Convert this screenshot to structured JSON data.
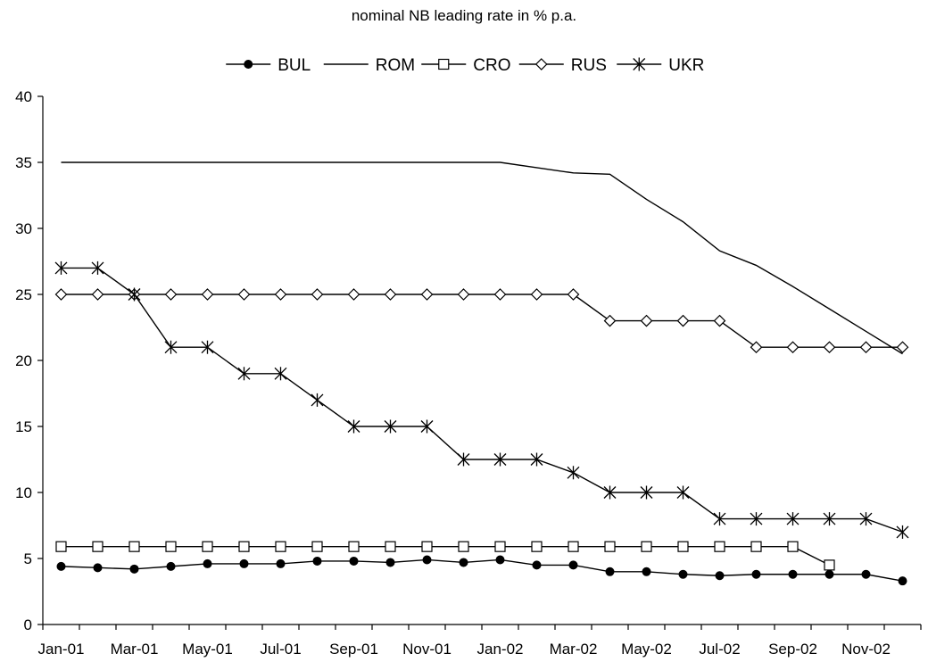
{
  "chart_data": {
    "type": "line",
    "title": "nominal NB leading rate in % p.a.",
    "xlabel": "",
    "ylabel": "",
    "ylim": [
      0,
      40
    ],
    "yticks": [
      0,
      5,
      10,
      15,
      20,
      25,
      30,
      35,
      40
    ],
    "x": [
      "Jan-01",
      "Feb-01",
      "Mar-01",
      "Apr-01",
      "May-01",
      "Jun-01",
      "Jul-01",
      "Aug-01",
      "Sep-01",
      "Oct-01",
      "Nov-01",
      "Dec-01",
      "Jan-02",
      "Feb-02",
      "Mar-02",
      "Apr-02",
      "May-02",
      "Jun-02",
      "Jul-02",
      "Aug-02",
      "Sep-02",
      "Oct-02",
      "Nov-02",
      "Dec-02"
    ],
    "xtick_labels": [
      "Jan-01",
      "Mar-01",
      "May-01",
      "Jul-01",
      "Sep-01",
      "Nov-01",
      "Jan-02",
      "Mar-02",
      "May-02",
      "Jul-02",
      "Sep-02",
      "Nov-02"
    ],
    "grid": false,
    "legend": "top-center",
    "series": [
      {
        "name": "BUL",
        "marker": "filled-circle",
        "color": "#000000",
        "values": [
          4.4,
          4.3,
          4.2,
          4.4,
          4.6,
          4.6,
          4.6,
          4.8,
          4.8,
          4.7,
          4.9,
          4.7,
          4.9,
          4.5,
          4.5,
          4.0,
          4.0,
          3.8,
          3.7,
          3.8,
          3.8,
          3.8,
          3.8,
          3.3
        ]
      },
      {
        "name": "ROM",
        "marker": "none",
        "color": "#000000",
        "values": [
          35,
          35,
          35,
          35,
          35,
          35,
          35,
          35,
          35,
          35,
          35,
          35,
          35,
          34.6,
          34.2,
          34.1,
          32.2,
          30.5,
          28.3,
          27.2,
          25.6,
          23.9,
          22.2,
          20.5
        ]
      },
      {
        "name": "CRO",
        "marker": "open-square",
        "color": "#000000",
        "values": [
          5.9,
          5.9,
          5.9,
          5.9,
          5.9,
          5.9,
          5.9,
          5.9,
          5.9,
          5.9,
          5.9,
          5.9,
          5.9,
          5.9,
          5.9,
          5.9,
          5.9,
          5.9,
          5.9,
          5.9,
          5.9,
          4.5,
          null,
          null
        ]
      },
      {
        "name": "RUS",
        "marker": "open-diamond",
        "color": "#000000",
        "values": [
          25,
          25,
          25,
          25,
          25,
          25,
          25,
          25,
          25,
          25,
          25,
          25,
          25,
          25,
          25,
          23,
          23,
          23,
          23,
          21,
          21,
          21,
          21,
          21
        ]
      },
      {
        "name": "UKR",
        "marker": "asterisk",
        "color": "#000000",
        "values": [
          27,
          27,
          25,
          21,
          21,
          19,
          19,
          17,
          15,
          15,
          15,
          12.5,
          12.5,
          12.5,
          11.5,
          10,
          10,
          10,
          8,
          8,
          8,
          8,
          8,
          7
        ]
      }
    ]
  }
}
